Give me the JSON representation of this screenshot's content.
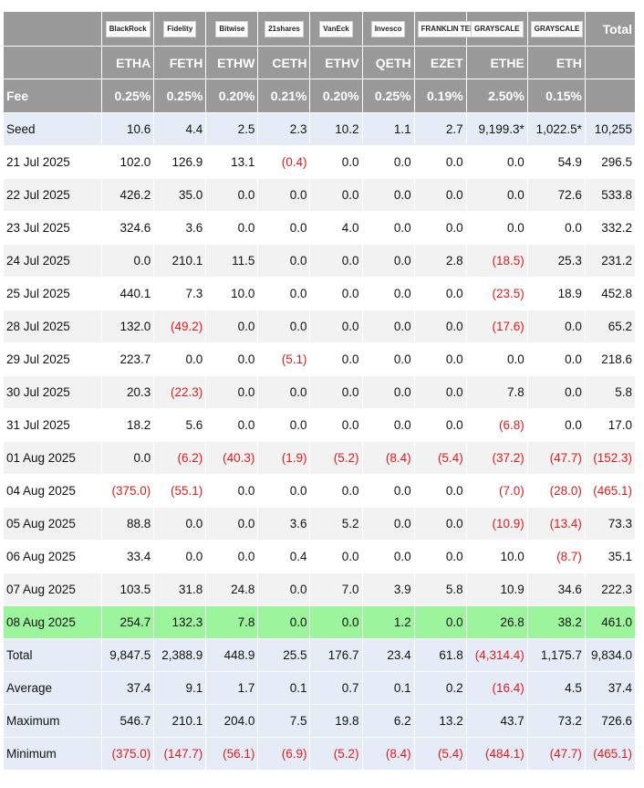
{
  "logos": [
    "BlackRock",
    "Fidelity",
    "Bitwise",
    "21shares",
    "VanEck",
    "Invesco",
    "FRANKLIN TEMPLETON",
    "GRAYSCALE",
    "GRAYSCALE"
  ],
  "header": {
    "total_label": "Total",
    "fee_label": "Fee",
    "tickers": [
      "ETHA",
      "FETH",
      "ETHW",
      "CETH",
      "ETHV",
      "QETH",
      "EZET",
      "ETHE",
      "ETH"
    ],
    "fees": [
      "0.25%",
      "0.25%",
      "0.20%",
      "0.21%",
      "0.20%",
      "0.25%",
      "0.19%",
      "2.50%",
      "0.15%"
    ]
  },
  "rows": [
    {
      "label": "Seed",
      "values": [
        "10.6",
        "4.4",
        "2.5",
        "2.3",
        "10.2",
        "1.1",
        "2.7",
        "9,199.3*",
        "1,022.5*",
        "10,255"
      ]
    },
    {
      "label": "21 Jul 2025",
      "values": [
        "102.0",
        "126.9",
        "13.1",
        "(0.4)",
        "0.0",
        "0.0",
        "0.0",
        "0.0",
        "54.9",
        "296.5"
      ]
    },
    {
      "label": "22 Jul 2025",
      "values": [
        "426.2",
        "35.0",
        "0.0",
        "0.0",
        "0.0",
        "0.0",
        "0.0",
        "0.0",
        "72.6",
        "533.8"
      ]
    },
    {
      "label": "23 Jul 2025",
      "values": [
        "324.6",
        "3.6",
        "0.0",
        "0.0",
        "4.0",
        "0.0",
        "0.0",
        "0.0",
        "0.0",
        "332.2"
      ]
    },
    {
      "label": "24 Jul 2025",
      "values": [
        "0.0",
        "210.1",
        "11.5",
        "0.0",
        "0.0",
        "0.0",
        "2.8",
        "(18.5)",
        "25.3",
        "231.2"
      ]
    },
    {
      "label": "25 Jul 2025",
      "values": [
        "440.1",
        "7.3",
        "10.0",
        "0.0",
        "0.0",
        "0.0",
        "0.0",
        "(23.5)",
        "18.9",
        "452.8"
      ]
    },
    {
      "label": "28 Jul 2025",
      "values": [
        "132.0",
        "(49.2)",
        "0.0",
        "0.0",
        "0.0",
        "0.0",
        "0.0",
        "(17.6)",
        "0.0",
        "65.2"
      ]
    },
    {
      "label": "29 Jul 2025",
      "values": [
        "223.7",
        "0.0",
        "0.0",
        "(5.1)",
        "0.0",
        "0.0",
        "0.0",
        "0.0",
        "0.0",
        "218.6"
      ]
    },
    {
      "label": "30 Jul 2025",
      "values": [
        "20.3",
        "(22.3)",
        "0.0",
        "0.0",
        "0.0",
        "0.0",
        "0.0",
        "7.8",
        "0.0",
        "5.8"
      ]
    },
    {
      "label": "31 Jul 2025",
      "values": [
        "18.2",
        "5.6",
        "0.0",
        "0.0",
        "0.0",
        "0.0",
        "0.0",
        "(6.8)",
        "0.0",
        "17.0"
      ]
    },
    {
      "label": "01 Aug 2025",
      "values": [
        "0.0",
        "(6.2)",
        "(40.3)",
        "(1.9)",
        "(5.2)",
        "(8.4)",
        "(5.4)",
        "(37.2)",
        "(47.7)",
        "(152.3)"
      ]
    },
    {
      "label": "04 Aug 2025",
      "values": [
        "(375.0)",
        "(55.1)",
        "0.0",
        "0.0",
        "0.0",
        "0.0",
        "0.0",
        "(7.0)",
        "(28.0)",
        "(465.1)"
      ]
    },
    {
      "label": "05 Aug 2025",
      "values": [
        "88.8",
        "0.0",
        "0.0",
        "3.6",
        "5.2",
        "0.0",
        "0.0",
        "(10.9)",
        "(13.4)",
        "73.3"
      ]
    },
    {
      "label": "06 Aug 2025",
      "values": [
        "33.4",
        "0.0",
        "0.0",
        "0.4",
        "0.0",
        "0.0",
        "0.0",
        "10.0",
        "(8.7)",
        "35.1"
      ]
    },
    {
      "label": "07 Aug 2025",
      "values": [
        "103.5",
        "31.8",
        "24.8",
        "0.0",
        "7.0",
        "3.9",
        "5.8",
        "10.9",
        "34.6",
        "222.3"
      ]
    },
    {
      "label": "08 Aug 2025",
      "values": [
        "254.7",
        "132.3",
        "7.8",
        "0.0",
        "0.0",
        "1.2",
        "0.0",
        "26.8",
        "38.2",
        "461.0"
      ]
    },
    {
      "label": "Total",
      "values": [
        "9,847.5",
        "2,388.9",
        "448.9",
        "25.5",
        "176.7",
        "23.4",
        "61.8",
        "(4,314.4)",
        "1,175.7",
        "9,834.0"
      ]
    },
    {
      "label": "Average",
      "values": [
        "37.4",
        "9.1",
        "1.7",
        "0.1",
        "0.7",
        "0.1",
        "0.2",
        "(16.4)",
        "4.5",
        "37.4"
      ]
    },
    {
      "label": "Maximum",
      "values": [
        "546.7",
        "210.1",
        "204.0",
        "7.5",
        "19.8",
        "6.2",
        "13.2",
        "43.7",
        "73.2",
        "726.6"
      ]
    },
    {
      "label": "Minimum",
      "values": [
        "(375.0)",
        "(147.7)",
        "(56.1)",
        "(6.9)",
        "(5.2)",
        "(8.4)",
        "(5.4)",
        "(484.1)",
        "(47.7)",
        "(465.1)"
      ]
    }
  ],
  "colors": {
    "header_bg": "#999999",
    "seed_bg": "#e6ecf7",
    "alt_bg": "#f2f2f2",
    "highlight_bg": "#9cf59c",
    "negative": "#e01b1b"
  }
}
